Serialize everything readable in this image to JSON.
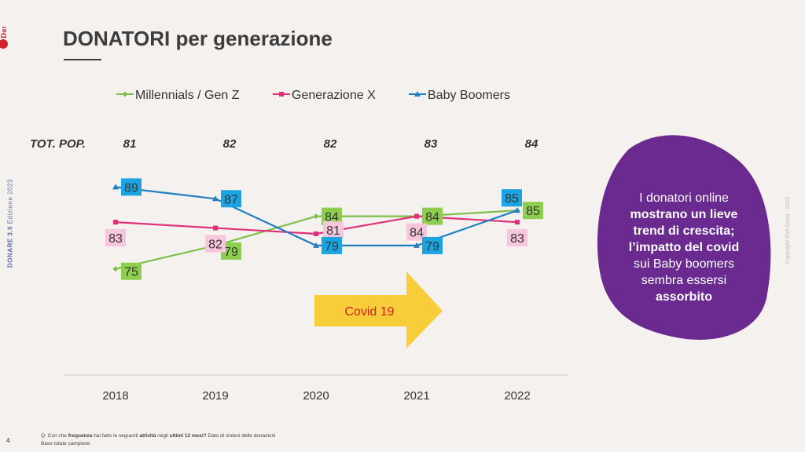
{
  "header": {
    "title": "DONATORI per generazione",
    "logo_text": "BVA Doxa",
    "side_label_bold": "DONARE 3.0",
    "side_label": "Edizione 2023",
    "page_number": "4",
    "copyright": "Copyright BVA Doxa - 2023"
  },
  "chart_data": {
    "type": "line",
    "categories": [
      "2018",
      "2019",
      "2020",
      "2021",
      "2022"
    ],
    "series": [
      {
        "name": "Millennials / Gen Z",
        "values": [
          75,
          79,
          84,
          84,
          85
        ],
        "color": "#7dc14a",
        "label_bg": "#8dce4f",
        "marker": "diamond"
      },
      {
        "name": "Generazione X",
        "values": [
          83,
          82,
          81,
          84,
          83
        ],
        "color": "#e0307a",
        "label_bg": "#f7c6dd",
        "marker": "square"
      },
      {
        "name": "Baby Boomers",
        "values": [
          89,
          87,
          79,
          79,
          85
        ],
        "color": "#1f7fc0",
        "label_bg": "#1aa4e2",
        "marker": "triangle"
      }
    ],
    "tot_pop_label": "TOT. POP.",
    "tot_pop": [
      81,
      82,
      82,
      83,
      84
    ],
    "ylim": [
      70,
      92
    ],
    "grid": false,
    "legend_position": "top"
  },
  "annotation": {
    "arrow_label": "Covid 19",
    "arrow_color": "#f8cd3a",
    "arrow_text_color": "#d32020"
  },
  "callout": {
    "line1": "I donatori online",
    "line2": "mostrano un lieve",
    "line3": "trend di crescita;",
    "line4": "l’impatto del covid",
    "line5": "sui Baby boomers",
    "line6": "sembra essersi",
    "line7": "assorbito",
    "bg_color": "#6a2a90"
  },
  "footnote": {
    "q_prefix": "Q. Con che",
    "q_bold1": "frequenza",
    "q_mid1": "hai fatto le seguenti",
    "q_bold2": "attività",
    "q_mid2": "negli",
    "q_bold3": "ultimi 12 mesi?",
    "q_suffix": "Dato di sintesi delle donazioni",
    "base": "Base totale campione"
  }
}
